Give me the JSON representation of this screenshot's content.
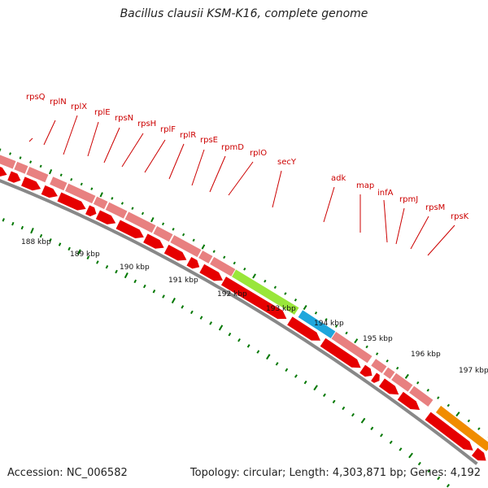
{
  "title": "Bacillus clausii KSM-K16, complete genome",
  "footer": {
    "accession": "Accession: NC_006582",
    "summary": "Topology: circular; Length: 4,303,871 bp; Genes: 4,192"
  },
  "scale_labels": [
    "188 kbp",
    "189 kbp",
    "190 kbp",
    "191 kbp",
    "192 kbp",
    "193 kbp",
    "194 kbp",
    "195 kbp",
    "196 kbp",
    "197 kbp"
  ],
  "genes": [
    {
      "name": "rpsQ"
    },
    {
      "name": "rplN"
    },
    {
      "name": "rplX"
    },
    {
      "name": "rplE"
    },
    {
      "name": "rpsN"
    },
    {
      "name": "rpsH"
    },
    {
      "name": "rplF"
    },
    {
      "name": "rplR"
    },
    {
      "name": "rpsE"
    },
    {
      "name": "rpmD"
    },
    {
      "name": "rplO"
    },
    {
      "name": "secY"
    },
    {
      "name": "adk"
    },
    {
      "name": "map"
    },
    {
      "name": "infA"
    },
    {
      "name": "rpmJ"
    },
    {
      "name": "rpsM"
    },
    {
      "name": "rpsK"
    }
  ],
  "colors": {
    "label": "#cc0000",
    "cds": "#e60000",
    "ribosomal": "#e88080",
    "secY": "#99e63a",
    "adk": "#1fa6dc",
    "rpsK_band": "#f08c00",
    "tick": "#007700",
    "backbone": "#888888"
  }
}
